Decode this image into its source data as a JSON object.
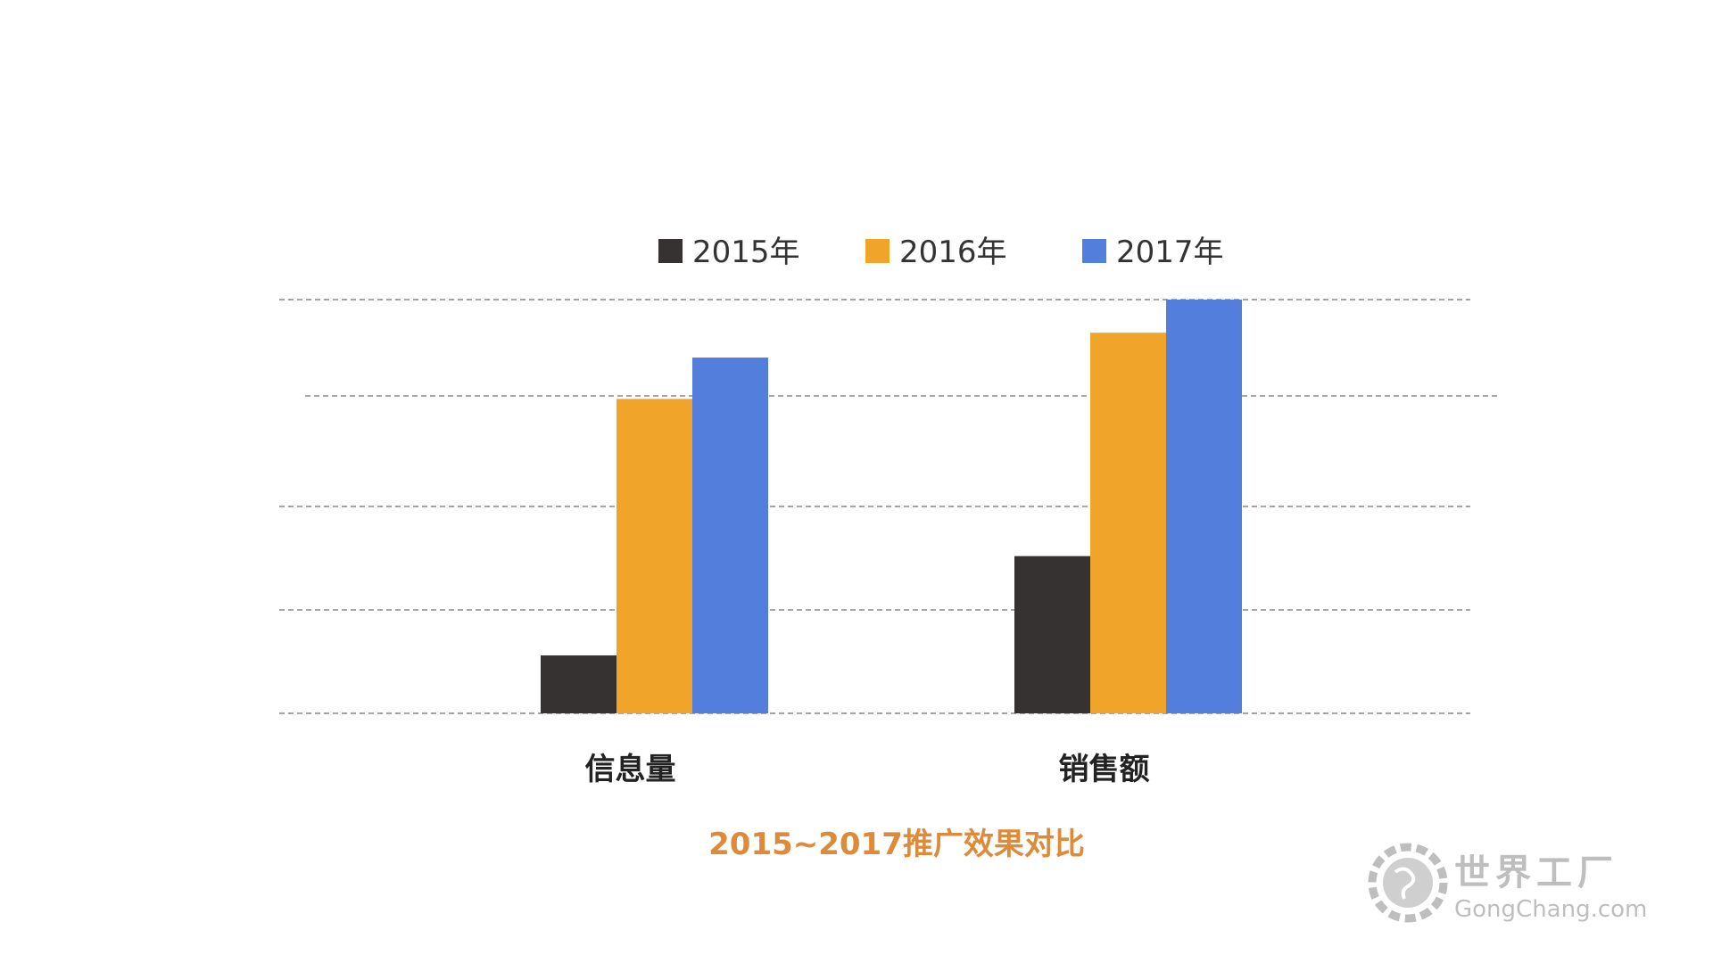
{
  "colors": {
    "series_2015": "#373232",
    "series_2016": "#f0a52a",
    "series_2017": "#547edc",
    "title": "#dd8a3a",
    "grid": "#888888"
  },
  "chart_data": {
    "type": "bar",
    "title": "2015~2017推广效果对比",
    "categories": [
      "信息量",
      "销售额"
    ],
    "series": [
      {
        "name": "2015年",
        "values": [
          0.7,
          1.9
        ]
      },
      {
        "name": "2016年",
        "values": [
          3.8,
          4.6
        ]
      },
      {
        "name": "2017年",
        "values": [
          4.3,
          5.0
        ]
      }
    ],
    "ylim": [
      0,
      5
    ],
    "grid": true,
    "legend_position": "top-center",
    "xlabel": "",
    "ylabel": ""
  },
  "watermark": {
    "brand_cn": "世界工厂",
    "brand_en": "GongChang.com",
    "icon": "globe-gear-icon"
  }
}
